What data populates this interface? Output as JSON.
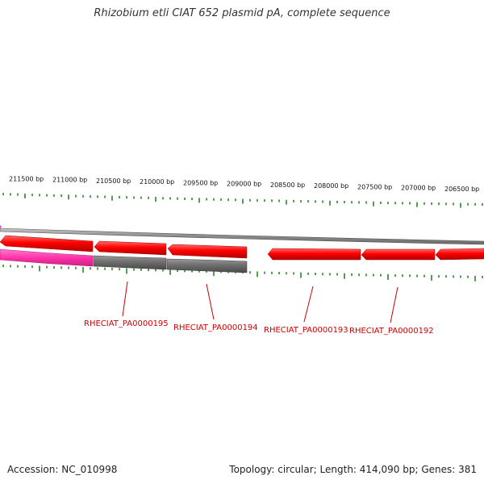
{
  "header": {
    "title": "Rhizobium etli CIAT 652 plasmid pA, complete sequence"
  },
  "footer": {
    "accession": "Accession: NC_010998",
    "topology": "Topology: circular; Length: 414,090 bp; Genes: 381"
  },
  "ruler": {
    "labels": [
      "211500 bp",
      "211000 bp",
      "210500 bp",
      "210000 bp",
      "209500 bp",
      "209000 bp",
      "208500 bp",
      "208000 bp",
      "207500 bp",
      "207000 bp",
      "206500 bp"
    ]
  },
  "genes": [
    {
      "id": "RHECIAT_PA0000195"
    },
    {
      "id": "RHECIAT_PA0000194"
    },
    {
      "id": "RHECIAT_PA0000193"
    },
    {
      "id": "RHECIAT_PA0000192"
    }
  ],
  "colors": {
    "cds": "#ff0000",
    "other_feature": "#6e6e6e",
    "highlight": "#ff33aa",
    "ticks": "#1a7a1a",
    "label": "#cc0000"
  }
}
